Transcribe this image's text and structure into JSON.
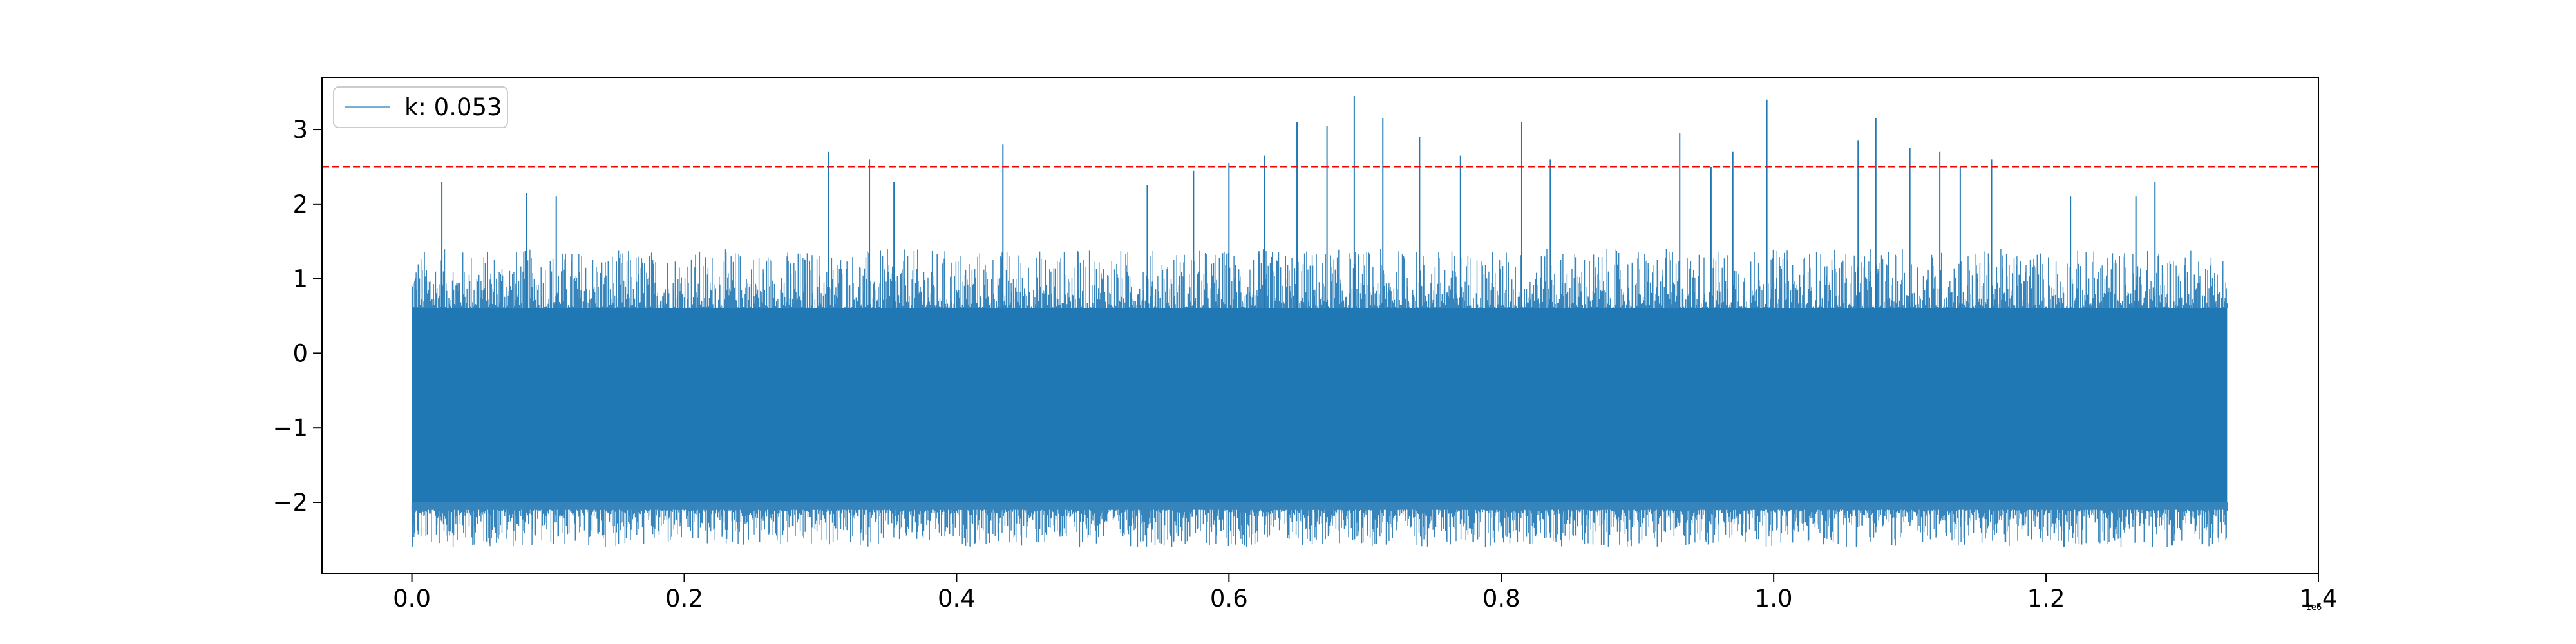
{
  "chart_data": {
    "type": "line",
    "title": "",
    "xlabel": "",
    "ylabel": "",
    "x_offset_label": "1e6",
    "xlim": [
      -0.066,
      1.4
    ],
    "ylim": [
      -2.95,
      3.7
    ],
    "x_ticks": [
      {
        "value": 0.0,
        "label": "0.0"
      },
      {
        "value": 0.2,
        "label": "0.2"
      },
      {
        "value": 0.4,
        "label": "0.4"
      },
      {
        "value": 0.6,
        "label": "0.6"
      },
      {
        "value": 0.8,
        "label": "0.8"
      },
      {
        "value": 1.0,
        "label": "1.0"
      },
      {
        "value": 1.2,
        "label": "1.2"
      },
      {
        "value": 1.4,
        "label": "1.4"
      }
    ],
    "y_ticks": [
      {
        "value": 3,
        "label": "3"
      },
      {
        "value": 2,
        "label": "2"
      },
      {
        "value": 1,
        "label": "1"
      },
      {
        "value": 0,
        "label": "0"
      },
      {
        "value": -1,
        "label": "−1"
      },
      {
        "value": -2,
        "label": "−2"
      }
    ],
    "grid": false,
    "legend": {
      "position": "top-left",
      "entries": [
        "k: 0.053"
      ]
    },
    "series": [
      {
        "name": "k: 0.053",
        "color": "#1f77b4",
        "x_range": [
          0.0,
          1.333
        ],
        "dense_band": [
          -2.0,
          0.6
        ],
        "lower_extent": [
          -2.6,
          -2.1
        ],
        "upper_extent": [
          0.6,
          1.4
        ],
        "spikes": [
          {
            "x": 0.022,
            "y": 2.3
          },
          {
            "x": 0.084,
            "y": 2.15
          },
          {
            "x": 0.106,
            "y": 2.1
          },
          {
            "x": 0.306,
            "y": 2.7
          },
          {
            "x": 0.336,
            "y": 2.6
          },
          {
            "x": 0.354,
            "y": 2.3
          },
          {
            "x": 0.434,
            "y": 2.8
          },
          {
            "x": 0.54,
            "y": 2.25
          },
          {
            "x": 0.574,
            "y": 2.45
          },
          {
            "x": 0.6,
            "y": 2.55
          },
          {
            "x": 0.626,
            "y": 2.65
          },
          {
            "x": 0.65,
            "y": 3.1
          },
          {
            "x": 0.672,
            "y": 3.05
          },
          {
            "x": 0.692,
            "y": 3.45
          },
          {
            "x": 0.713,
            "y": 3.15
          },
          {
            "x": 0.74,
            "y": 2.9
          },
          {
            "x": 0.77,
            "y": 2.65
          },
          {
            "x": 0.815,
            "y": 3.1
          },
          {
            "x": 0.836,
            "y": 2.6
          },
          {
            "x": 0.931,
            "y": 2.95
          },
          {
            "x": 0.954,
            "y": 2.5
          },
          {
            "x": 0.97,
            "y": 2.7
          },
          {
            "x": 0.995,
            "y": 3.4
          },
          {
            "x": 1.062,
            "y": 2.85
          },
          {
            "x": 1.075,
            "y": 3.15
          },
          {
            "x": 1.1,
            "y": 2.75
          },
          {
            "x": 1.122,
            "y": 2.7
          },
          {
            "x": 1.137,
            "y": 2.5
          },
          {
            "x": 1.16,
            "y": 2.6
          },
          {
            "x": 1.218,
            "y": 2.1
          },
          {
            "x": 1.266,
            "y": 2.1
          },
          {
            "x": 1.28,
            "y": 2.3
          }
        ]
      },
      {
        "name": "",
        "color": "#ff0000",
        "style": "dashed",
        "x": [
          -0.066,
          1.4
        ],
        "y": [
          2.5,
          2.5
        ]
      }
    ]
  }
}
